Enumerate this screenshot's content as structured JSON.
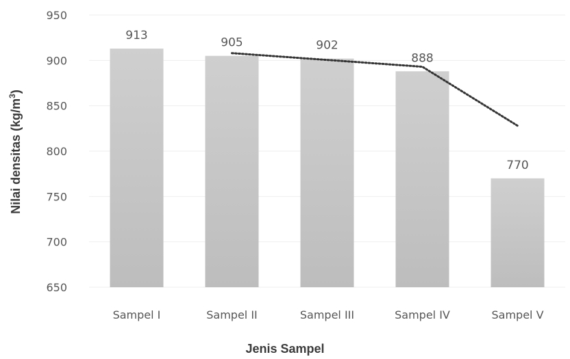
{
  "chart_data": {
    "type": "bar",
    "categories": [
      "Sampel I",
      "Sampel II",
      "Sampel III",
      "Sampel IV",
      "Sampel V"
    ],
    "values": [
      913,
      905,
      902,
      888,
      770
    ],
    "data_labels": [
      "913",
      "905",
      "902",
      "888",
      "770"
    ],
    "xlabel": "Jenis Sampel",
    "ylabel_main": "Nilai densitas (kg/m",
    "ylabel_sup": "3",
    "ylabel_end": ")",
    "ylim": [
      650,
      950
    ],
    "yticks": [
      "650",
      "700",
      "750",
      "800",
      "850",
      "900",
      "950"
    ],
    "grid": true,
    "bar_color": "#c8c8c8",
    "trendline": {
      "style": "dotted",
      "color": "#333333",
      "points": [
        {
          "category": "Sampel II",
          "value": 908
        },
        {
          "category": "Sampel IV",
          "value": 893
        },
        {
          "category": "Sampel V",
          "value": 828
        }
      ]
    }
  }
}
